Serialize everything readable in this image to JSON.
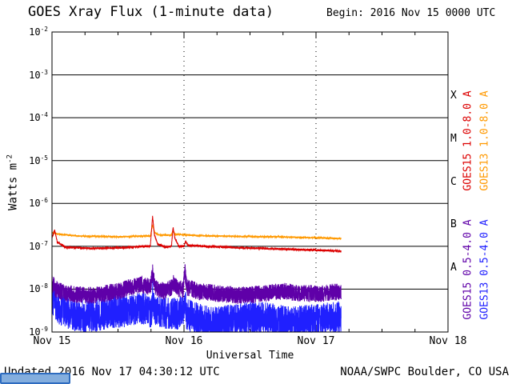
{
  "header": {
    "title": "GOES Xray Flux (1-minute data)",
    "begin": "Begin: 2016 Nov 15 0000 UTC"
  },
  "footer": {
    "updated": "Updated 2016 Nov 17 04:30:12 UTC",
    "credit": "NOAA/SWPC Boulder, CO USA"
  },
  "chart_data": {
    "type": "line",
    "title": "GOES Xray Flux (1-minute data)",
    "xlabel": "Universal Time",
    "ylabel": "Watts m^-2",
    "x_axis": {
      "start": "2016 Nov 15 0000 UTC",
      "span_days": 3,
      "tick_labels": [
        "Nov 15",
        "Nov 16",
        "Nov 17",
        "Nov 18"
      ],
      "minor_tick_hours": 6
    },
    "y_axis": {
      "scale": "log",
      "top_exp": -2,
      "bottom_exp": -9,
      "unit": "Watts m^-2"
    },
    "flare_classes": [
      "X",
      "M",
      "C",
      "B",
      "A"
    ],
    "series": [
      {
        "id": "goes13-short",
        "name": "GOES13 0.5-4.0 A",
        "color": "#2020ff",
        "noise": 0.38,
        "skew": -0.12,
        "end_day": 2.19,
        "stroke_width": 1,
        "label_column": 1,
        "label_row": 1,
        "points_log10": [
          [
            0.0,
            -8.1
          ],
          [
            0.05,
            -8.35
          ],
          [
            0.15,
            -8.5
          ],
          [
            0.3,
            -8.55
          ],
          [
            0.45,
            -8.45
          ],
          [
            0.6,
            -8.4
          ],
          [
            0.7,
            -8.35
          ],
          [
            0.755,
            -8.45
          ],
          [
            0.762,
            -8.0
          ],
          [
            0.775,
            -8.4
          ],
          [
            0.85,
            -8.45
          ],
          [
            0.95,
            -8.5
          ],
          [
            1.0,
            -8.35
          ],
          [
            1.006,
            -8.1
          ],
          [
            1.02,
            -8.5
          ],
          [
            1.1,
            -8.6
          ],
          [
            1.2,
            -8.7
          ],
          [
            1.35,
            -8.65
          ],
          [
            1.5,
            -8.55
          ],
          [
            1.65,
            -8.6
          ],
          [
            1.8,
            -8.7
          ],
          [
            1.95,
            -8.65
          ],
          [
            2.1,
            -8.6
          ],
          [
            2.19,
            -8.55
          ]
        ]
      },
      {
        "id": "goes15-short",
        "name": "GOES15 0.5-4.0 A",
        "color": "#5f00a8",
        "noise": 0.2,
        "skew": 0,
        "end_day": 2.19,
        "stroke_width": 1,
        "label_column": 0,
        "label_row": 1,
        "points_log10": [
          [
            0.0,
            -7.85
          ],
          [
            0.03,
            -8.0
          ],
          [
            0.1,
            -8.1
          ],
          [
            0.3,
            -8.15
          ],
          [
            0.5,
            -8.05
          ],
          [
            0.6,
            -7.95
          ],
          [
            0.68,
            -7.9
          ],
          [
            0.745,
            -7.95
          ],
          [
            0.762,
            -7.6
          ],
          [
            0.78,
            -7.95
          ],
          [
            0.85,
            -8.05
          ],
          [
            0.905,
            -7.95
          ],
          [
            0.92,
            -7.85
          ],
          [
            0.96,
            -8.0
          ],
          [
            0.995,
            -8.0
          ],
          [
            1.006,
            -7.55
          ],
          [
            1.02,
            -7.95
          ],
          [
            1.1,
            -8.05
          ],
          [
            1.25,
            -8.1
          ],
          [
            1.45,
            -8.15
          ],
          [
            1.6,
            -8.1
          ],
          [
            1.75,
            -8.05
          ],
          [
            1.9,
            -8.1
          ],
          [
            2.05,
            -8.1
          ],
          [
            2.19,
            -8.05
          ]
        ]
      },
      {
        "id": "goes13-long",
        "name": "GOES13 1.0-8.0 A",
        "color": "#ff9900",
        "noise": 0.02,
        "skew": 0,
        "end_day": 2.19,
        "stroke_width": 1,
        "label_column": 1,
        "label_row": 0,
        "points_log10": [
          [
            0.0,
            -6.68
          ],
          [
            0.05,
            -6.72
          ],
          [
            0.2,
            -6.76
          ],
          [
            0.5,
            -6.78
          ],
          [
            0.7,
            -6.76
          ],
          [
            0.745,
            -6.76
          ],
          [
            0.762,
            -6.5
          ],
          [
            0.778,
            -6.68
          ],
          [
            0.82,
            -6.74
          ],
          [
            0.905,
            -6.74
          ],
          [
            0.917,
            -6.62
          ],
          [
            0.93,
            -6.72
          ],
          [
            1.1,
            -6.75
          ],
          [
            1.4,
            -6.77
          ],
          [
            1.7,
            -6.78
          ],
          [
            2.0,
            -6.8
          ],
          [
            2.19,
            -6.82
          ]
        ]
      },
      {
        "id": "goes15-long",
        "name": "GOES15 1.0-8.0 A",
        "color": "#dc0000",
        "noise": 0.025,
        "skew": 0,
        "end_day": 2.19,
        "stroke_width": 1,
        "label_column": 0,
        "label_row": 0,
        "points_log10": [
          [
            0.0,
            -6.8
          ],
          [
            0.02,
            -6.62
          ],
          [
            0.04,
            -6.9
          ],
          [
            0.1,
            -7.02
          ],
          [
            0.3,
            -7.05
          ],
          [
            0.55,
            -7.03
          ],
          [
            0.7,
            -7.0
          ],
          [
            0.745,
            -7.0
          ],
          [
            0.762,
            -6.3
          ],
          [
            0.775,
            -6.72
          ],
          [
            0.8,
            -6.95
          ],
          [
            0.86,
            -7.02
          ],
          [
            0.905,
            -7.0
          ],
          [
            0.917,
            -6.55
          ],
          [
            0.93,
            -6.8
          ],
          [
            0.96,
            -7.0
          ],
          [
            1.0,
            -7.0
          ],
          [
            1.012,
            -6.88
          ],
          [
            1.03,
            -6.98
          ],
          [
            1.3,
            -7.02
          ],
          [
            1.6,
            -7.05
          ],
          [
            1.9,
            -7.08
          ],
          [
            2.1,
            -7.1
          ],
          [
            2.19,
            -7.12
          ]
        ]
      }
    ]
  }
}
